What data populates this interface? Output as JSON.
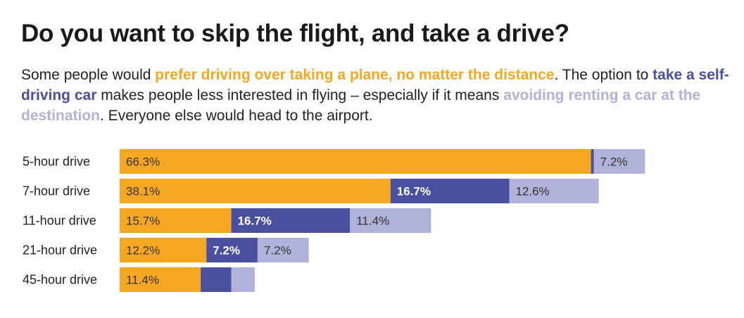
{
  "title": "Do you want to skip the flight, and take a drive?",
  "subtitle": {
    "p1": "Some people would ",
    "h1": "prefer driving over taking a plane, no matter the distance",
    "p2": ". The option to ",
    "h2": "take a self-driving car",
    "p3": " makes people less interested in flying – especially if it means ",
    "h3": "avoiding renting a car at the destination",
    "p4": ". Everyone else would head to the airport."
  },
  "colors": {
    "prefer_driving": "#f5a623",
    "self_driving": "#4b4fa0",
    "avoid_rental": "#b1b2d9",
    "label_on_dark": "#ffffff",
    "label_on_light": "#333333"
  },
  "chart_data": {
    "type": "bar",
    "stacked": true,
    "orientation": "horizontal",
    "categories": [
      "5-hour drive",
      "7-hour drive",
      "11-hour drive",
      "21-hour drive",
      "45-hour drive"
    ],
    "series": [
      {
        "key": "prefer_driving",
        "values": [
          66.3,
          38.1,
          15.7,
          12.2,
          11.4
        ],
        "labels": [
          "66.3%",
          "38.1%",
          "15.7%",
          "12.2%",
          "11.4%"
        ]
      },
      {
        "key": "self_driving",
        "values": [
          0.4,
          16.7,
          16.7,
          7.2,
          4.3
        ],
        "labels": [
          "",
          "16.7%",
          "16.7%",
          "7.2%",
          ""
        ]
      },
      {
        "key": "avoid_rental",
        "values": [
          7.2,
          12.6,
          11.4,
          7.2,
          3.3
        ],
        "labels": [
          "7.2%",
          "12.6%",
          "11.4%",
          "7.2%",
          ""
        ]
      }
    ],
    "xlim": [
      0,
      100
    ]
  }
}
